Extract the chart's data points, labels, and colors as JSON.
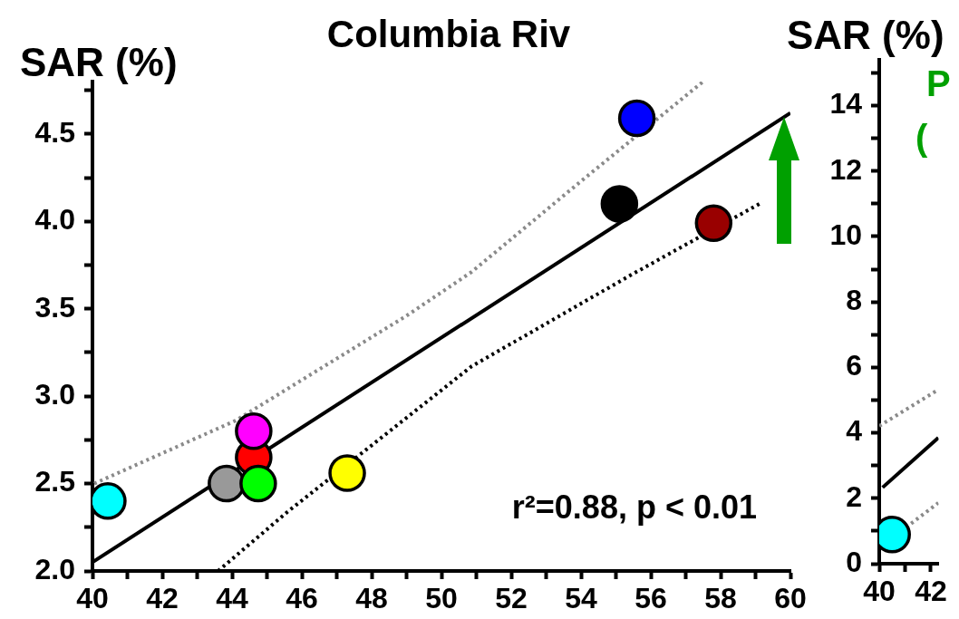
{
  "chart_data": [
    {
      "type": "scatter",
      "title": "Columbia Riv",
      "ylabel": "SAR (%)",
      "annotations": [
        "r²=0.88, p < 0.01"
      ],
      "xlim": [
        40,
        60
      ],
      "xticks": [
        40,
        {
          "value": 41,
          "label": null
        },
        42,
        {
          "value": 43,
          "label": null
        },
        44,
        {
          "value": 45,
          "label": null
        },
        46,
        {
          "value": 47,
          "label": null
        },
        48,
        {
          "value": 49,
          "label": null
        },
        50,
        {
          "value": 51,
          "label": null
        },
        52,
        {
          "value": 53,
          "label": null
        },
        54,
        {
          "value": 55,
          "label": null
        },
        56,
        {
          "value": 57,
          "label": null
        },
        58,
        {
          "value": 59,
          "label": null
        },
        60
      ],
      "ylim": [
        2,
        4.8
      ],
      "yticks": [
        {
          "value": 2,
          "label": "2.0"
        },
        {
          "value": 2.25,
          "label": null
        },
        {
          "value": 2.5,
          "label": "2.5"
        },
        {
          "value": 2.75,
          "label": null
        },
        {
          "value": 3,
          "label": "3.0"
        },
        {
          "value": 3.25,
          "label": null
        },
        {
          "value": 3.5,
          "label": "3.5"
        },
        {
          "value": 3.75,
          "label": null
        },
        {
          "value": 4,
          "label": "4.0"
        },
        {
          "value": 4.25,
          "label": null
        },
        {
          "value": 4.5,
          "label": "4.5"
        },
        {
          "value": 4.75,
          "label": null
        }
      ],
      "grid": false,
      "legend": false,
      "series": [
        {
          "type": "line",
          "marker": "none",
          "line_style": "dotted",
          "color": "#8a8a8a",
          "x": [
            40.05,
            44.1,
            49.0,
            50.86,
            54.0,
            57.5
          ],
          "values": [
            2.5,
            2.86,
            3.46,
            3.71,
            4.23,
            4.8
          ]
        },
        {
          "type": "line",
          "marker": "none",
          "line_style": "solid",
          "color": "#000000",
          "x": [
            40,
            60
          ],
          "values": [
            2.05,
            4.62
          ]
        },
        {
          "type": "line",
          "marker": "none",
          "line_style": "dotted",
          "color": "#000000",
          "x": [
            43.6,
            45.6,
            50.86,
            55.4,
            59.2
          ],
          "values": [
            2.0,
            2.34,
            3.17,
            3.69,
            4.11
          ]
        },
        {
          "marker": "circle",
          "x": [
            40.44,
            44.62,
            44.62,
            43.84,
            44.75,
            47.3,
            55.1,
            55.6,
            57.8
          ],
          "values": [
            2.4,
            2.65,
            2.8,
            2.5,
            2.5,
            2.56,
            4.1,
            4.59,
            3.99
          ],
          "colors": [
            "#00ffff",
            "#ff0000",
            "#ff00ff",
            "#999999",
            "#00ff00",
            "#ffff00",
            "#000000",
            "#0000ff",
            "#990000"
          ]
        }
      ]
    },
    {
      "type": "scatter",
      "ylabel": "SAR (%)",
      "annotations": [
        "P",
        "("
      ],
      "xlim": [
        40,
        42.3
      ],
      "xticks": [
        40,
        {
          "value": 41,
          "label": null
        },
        42
      ],
      "ylim": [
        0,
        15.4
      ],
      "yticks": [
        0,
        {
          "value": 1,
          "label": null
        },
        2,
        {
          "value": 3,
          "label": null
        },
        4,
        {
          "value": 5,
          "label": null
        },
        6,
        {
          "value": 7,
          "label": null
        },
        8,
        {
          "value": 9,
          "label": null
        },
        10,
        {
          "value": 11,
          "label": null
        },
        12,
        {
          "value": 13,
          "label": null
        },
        14,
        {
          "value": 15,
          "label": null
        }
      ],
      "grid": false,
      "legend": false,
      "series": [
        {
          "type": "line",
          "marker": "none",
          "line_style": "dotted",
          "color": "#8a8a8a",
          "x": [
            40,
            42.29
          ],
          "values": [
            4.21,
            5.32
          ]
        },
        {
          "type": "line",
          "marker": "none",
          "line_style": "solid",
          "color": "#000000",
          "x": [
            40.13,
            42.29
          ],
          "values": [
            2.33,
            3.85
          ]
        },
        {
          "type": "line",
          "marker": "none",
          "line_style": "dotted",
          "color": "#8a8a8a",
          "x": [
            41.04,
            42.29
          ],
          "values": [
            1.11,
            1.86
          ]
        },
        {
          "marker": "circle",
          "x": [
            40.5
          ],
          "values": [
            0.89
          ],
          "colors": [
            "#00ffff"
          ]
        }
      ]
    }
  ]
}
